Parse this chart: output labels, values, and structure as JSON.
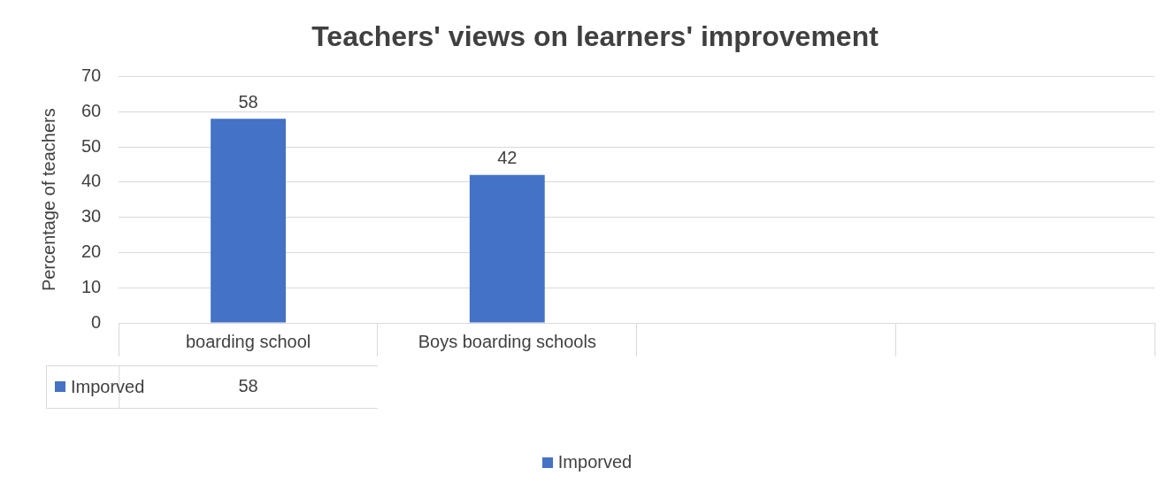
{
  "chart_data": {
    "type": "bar",
    "title": "Teachers' views on learners' improvement",
    "ylabel": "Percentage of teachers",
    "categories": [
      "boarding school",
      "Boys boarding schools",
      null,
      null
    ],
    "series": [
      {
        "name": "Imporved",
        "color": "#4472c4",
        "values": [
          58,
          42,
          null,
          null
        ]
      }
    ],
    "ylim": [
      0,
      70
    ],
    "yticks": [
      0,
      10,
      20,
      30,
      40,
      50,
      60,
      70
    ],
    "grid": "y",
    "legend": "bottom",
    "data_labels": true,
    "annotations": [
      "58"
    ]
  }
}
